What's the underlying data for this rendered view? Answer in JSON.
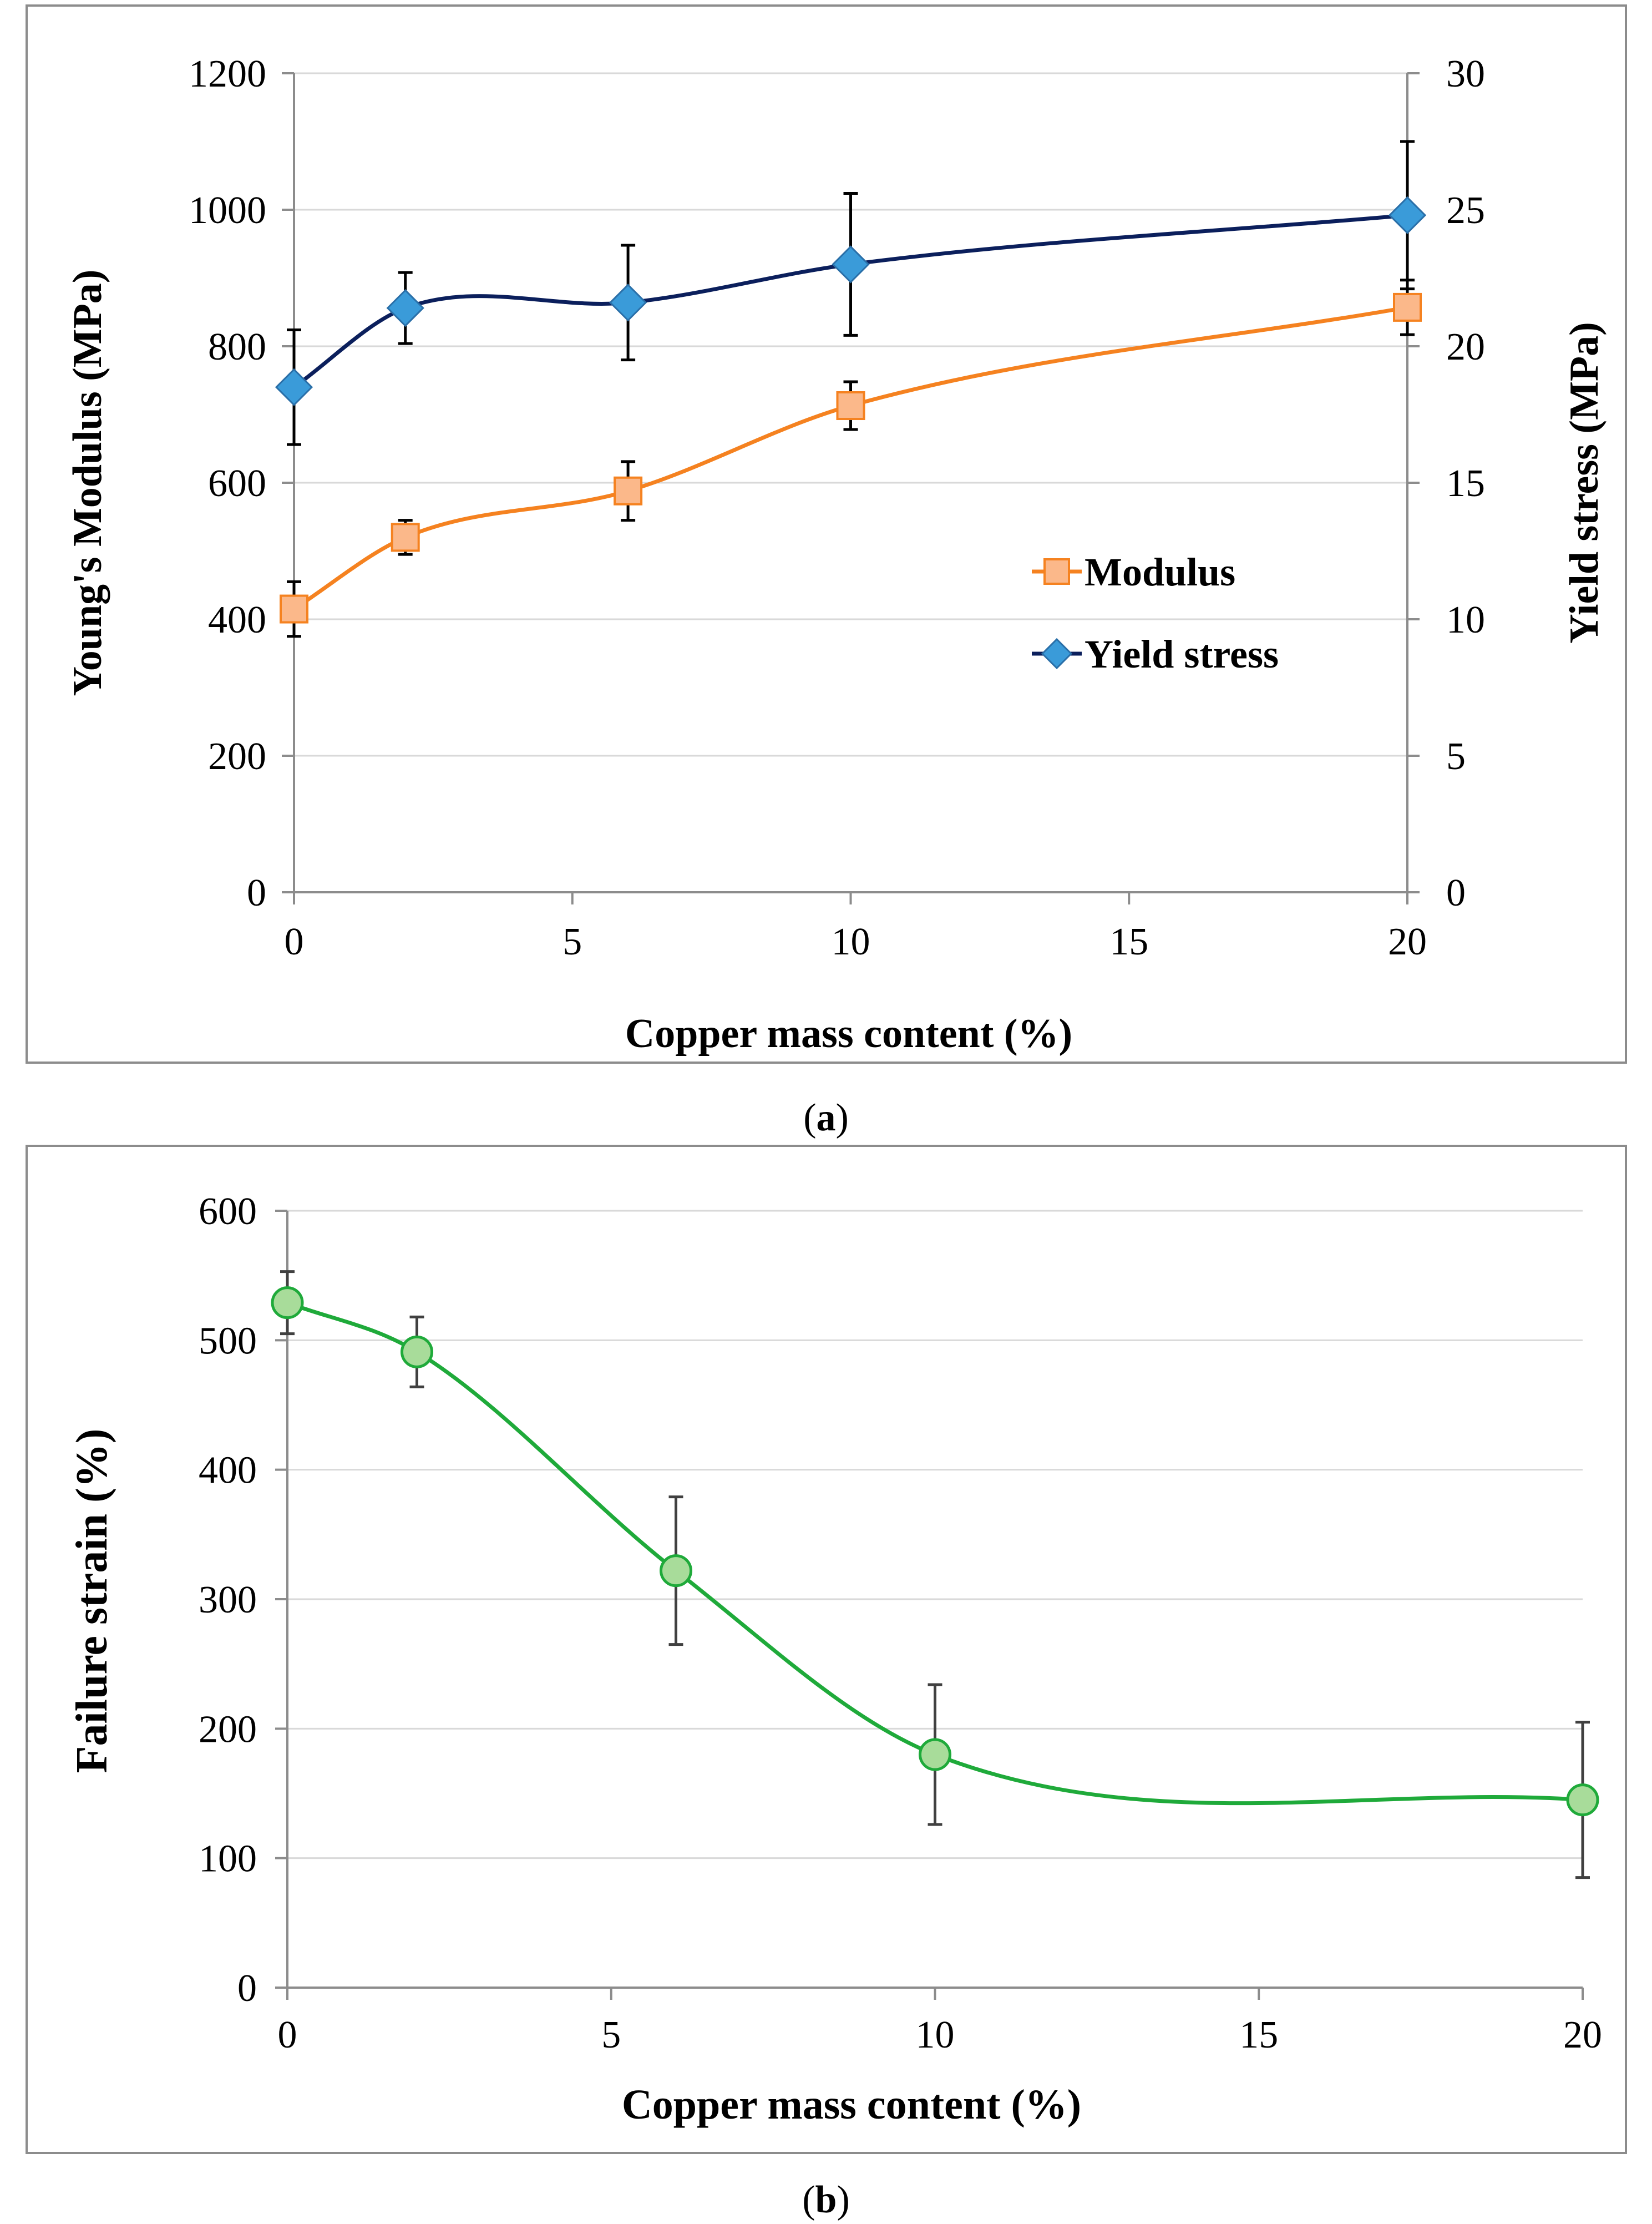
{
  "chart_data": [
    {
      "panel": "a",
      "type": "line",
      "xlabel": "Copper mass content (%)",
      "ylabel": "Young's Modulus (MPa)",
      "y2label": "Yield stress (MPa)",
      "xlim": [
        0,
        20
      ],
      "xticks": [
        "0",
        "5",
        "10",
        "15",
        "20"
      ],
      "xtick_values": [
        0,
        5,
        10,
        15,
        20
      ],
      "ylim": [
        0,
        1200
      ],
      "yticks": [
        "0",
        "200",
        "400",
        "600",
        "800",
        "1000",
        "1200"
      ],
      "ytick_values": [
        0,
        200,
        400,
        600,
        800,
        1000,
        1200
      ],
      "y2lim": [
        0,
        30
      ],
      "y2ticks": [
        "0",
        "5",
        "10",
        "15",
        "20",
        "25",
        "30"
      ],
      "y2tick_values": [
        0,
        5,
        10,
        15,
        20,
        25,
        30
      ],
      "grid": true,
      "legend_position": "center-right",
      "series": [
        {
          "name": "Modulus",
          "axis": "left",
          "color": "#F58220",
          "marker": "square",
          "marker_fill": "#FBB88A",
          "x": [
            0,
            2,
            6,
            10,
            20
          ],
          "values": [
            415,
            520,
            588,
            713,
            857
          ],
          "error": [
            40,
            25,
            43,
            35,
            40
          ]
        },
        {
          "name": "Yield stress",
          "axis": "right",
          "color": "#0B1F5C",
          "marker": "diamond",
          "marker_fill": "#3A9BD9",
          "x": [
            0,
            2,
            6,
            10,
            20
          ],
          "values": [
            18.5,
            21.4,
            21.6,
            23.0,
            24.8
          ],
          "error": [
            2.1,
            1.3,
            2.1,
            2.6,
            2.7
          ]
        }
      ]
    },
    {
      "panel": "b",
      "type": "line",
      "xlabel": "Copper mass content (%)",
      "ylabel": "Failure strain (%)",
      "xlim": [
        0,
        20
      ],
      "xticks": [
        "0",
        "5",
        "10",
        "15",
        "20"
      ],
      "xtick_values": [
        0,
        5,
        10,
        15,
        20
      ],
      "ylim": [
        0,
        600
      ],
      "yticks": [
        "0",
        "100",
        "200",
        "300",
        "400",
        "500",
        "600"
      ],
      "ytick_values": [
        0,
        100,
        200,
        300,
        400,
        500,
        600
      ],
      "grid": true,
      "series": [
        {
          "name": "Failure strain",
          "color": "#1FAA3A",
          "marker": "circle",
          "marker_fill": "#A8DC9A",
          "x": [
            0,
            2,
            6,
            10,
            20
          ],
          "values": [
            529,
            491,
            322,
            180,
            145
          ],
          "error": [
            24,
            27,
            57,
            54,
            60
          ]
        }
      ]
    }
  ],
  "captions": {
    "a_open": "(",
    "a_letter": "a",
    "a_close": ")",
    "b_open": "(",
    "b_letter": "b",
    "b_close": ")"
  }
}
